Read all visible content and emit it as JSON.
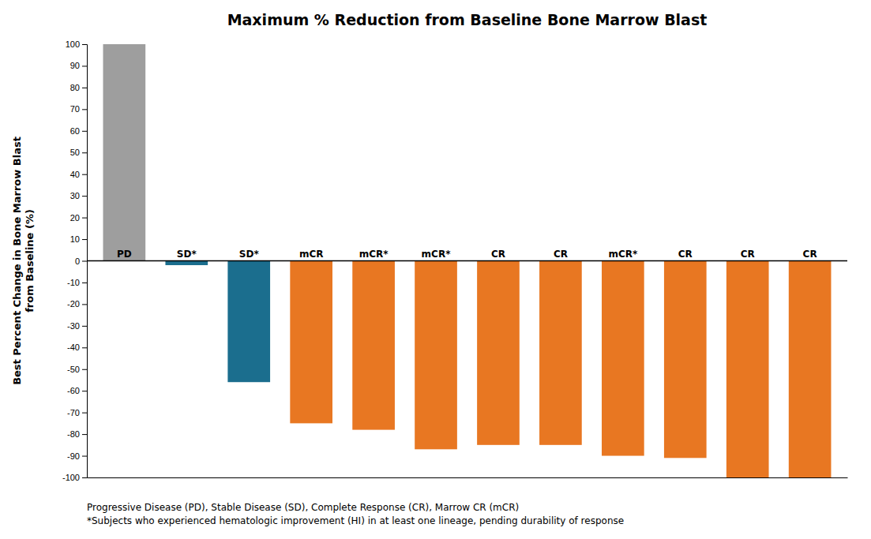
{
  "chart_data": {
    "type": "bar",
    "title": "Maximum % Reduction from Baseline Bone Marrow Blast",
    "ylabel": "Best Percent Change in Bone Marrow Blast\nfrom Baseline (%)",
    "categories": [
      "PD",
      "SD*",
      "SD*",
      "mCR",
      "mCR*",
      "mCR*",
      "CR",
      "CR",
      "mCR*",
      "CR",
      "CR",
      "CR"
    ],
    "values": [
      100,
      -2,
      -56,
      -75,
      -78,
      -87,
      -85,
      -85,
      -90,
      -91,
      -100,
      -100
    ],
    "colors": [
      "#9E9E9E",
      "#1B6E8E",
      "#1B6E8E",
      "#E87722",
      "#E87722",
      "#E87722",
      "#E87722",
      "#E87722",
      "#E87722",
      "#E87722",
      "#E87722",
      "#E87722"
    ],
    "ylim": [
      -100,
      100
    ],
    "yticks": [
      -100,
      -90,
      -80,
      -70,
      -60,
      -50,
      -40,
      -30,
      -20,
      -10,
      0,
      10,
      20,
      30,
      40,
      50,
      60,
      70,
      80,
      90,
      100
    ],
    "grid": false,
    "annotations": [
      "Progressive Disease (PD), Stable Disease (SD), Complete Response (CR), Marrow CR (mCR)",
      "*Subjects who experienced hematologic improvement (HI) in at least one lineage, pending durability of response"
    ]
  }
}
